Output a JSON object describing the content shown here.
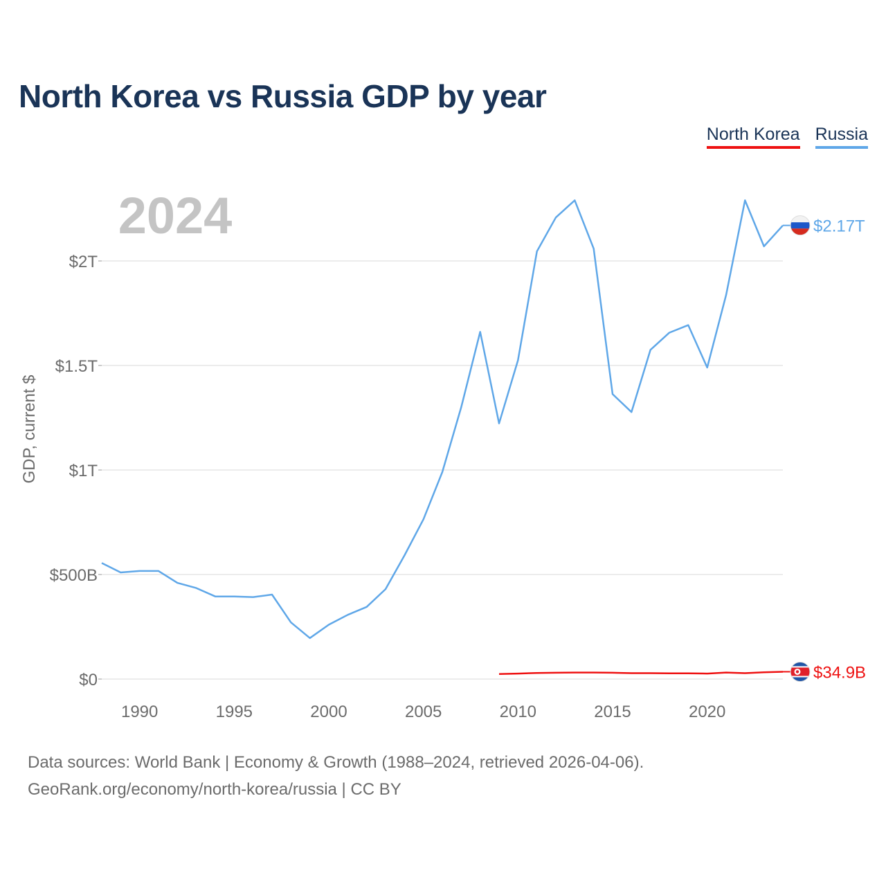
{
  "title": "North Korea vs Russia GDP by year",
  "legend": [
    {
      "label": "North Korea",
      "color": "#ee1111"
    },
    {
      "label": "Russia",
      "color": "#5fa7e8"
    }
  ],
  "year_watermark": "2024",
  "footer": {
    "line1": "Data sources: World Bank | Economy & Growth (1988–2024, retrieved 2026-04-06).",
    "line2": "GeoRank.org/economy/north-korea/russia | CC BY"
  },
  "chart_data": {
    "type": "line",
    "title": "North Korea vs Russia GDP by year",
    "xlabel": "",
    "ylabel": "GDP, current $",
    "xlim": [
      1988,
      2024
    ],
    "ylim": [
      0,
      2300
    ],
    "y_unit": "billions of current US$",
    "x_ticks": [
      1990,
      1995,
      2000,
      2005,
      2010,
      2015,
      2020
    ],
    "y_ticks": [
      {
        "value": 0,
        "label": "$0"
      },
      {
        "value": 500,
        "label": "$500B"
      },
      {
        "value": 1000,
        "label": "$1T"
      },
      {
        "value": 1500,
        "label": "$1.5T"
      },
      {
        "value": 2000,
        "label": "$2T"
      }
    ],
    "grid": true,
    "legend_position": "top-right",
    "series": [
      {
        "name": "Russia",
        "color": "#5fa7e8",
        "end_label": "$2.17T",
        "x": [
          1988,
          1989,
          1990,
          1991,
          1992,
          1993,
          1994,
          1995,
          1996,
          1997,
          1998,
          1999,
          2000,
          2001,
          2002,
          2003,
          2004,
          2005,
          2006,
          2007,
          2008,
          2009,
          2010,
          2011,
          2012,
          2013,
          2014,
          2015,
          2016,
          2017,
          2018,
          2019,
          2020,
          2021,
          2022,
          2023,
          2024
        ],
        "values": [
          555,
          510,
          517,
          517,
          460,
          435,
          395,
          395,
          392,
          404,
          271,
          196,
          260,
          307,
          345,
          430,
          591,
          764,
          990,
          1300,
          1661,
          1223,
          1525,
          2046,
          2208,
          2290,
          2059,
          1363,
          1277,
          1575,
          1657,
          1693,
          1490,
          1837,
          2290,
          2070,
          2170
        ]
      },
      {
        "name": "North Korea",
        "color": "#ee1111",
        "end_label": "$34.9B",
        "x": [
          2009,
          2010,
          2011,
          2012,
          2013,
          2014,
          2015,
          2016,
          2017,
          2018,
          2019,
          2020,
          2021,
          2022,
          2023,
          2024
        ],
        "values": [
          24,
          26,
          29,
          30,
          31,
          31,
          30,
          28,
          28,
          27,
          27,
          26,
          31,
          28,
          32,
          34.9
        ]
      }
    ]
  }
}
